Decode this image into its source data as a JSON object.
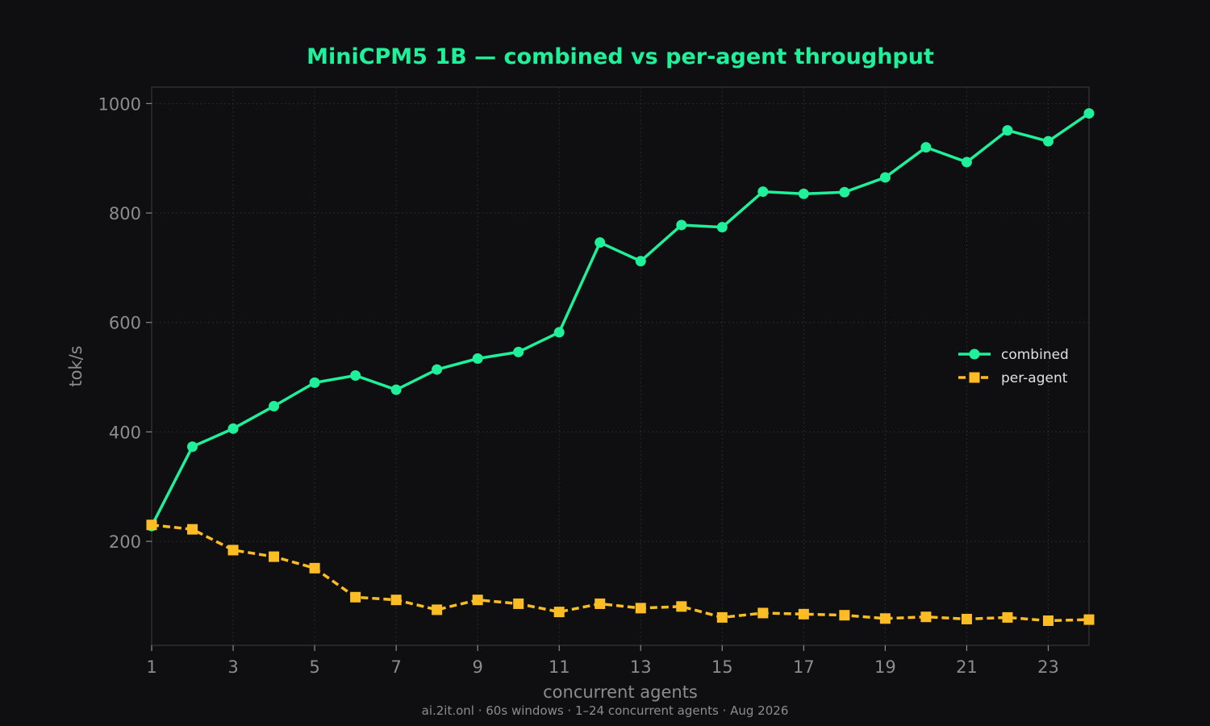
{
  "chart_data": {
    "type": "line",
    "title": "MiniCPM5 1B — combined vs per-agent throughput",
    "xlabel": "concurrent agents",
    "ylabel": "tok/s",
    "xlim": [
      1,
      24
    ],
    "ylim": [
      10,
      1030
    ],
    "xticks": [
      1,
      3,
      5,
      7,
      9,
      11,
      13,
      15,
      17,
      19,
      21,
      23
    ],
    "yticks": [
      200,
      400,
      600,
      800,
      1000
    ],
    "grid": true,
    "legend_position": "right",
    "x": [
      1,
      2,
      3,
      4,
      5,
      6,
      7,
      8,
      9,
      10,
      11,
      12,
      13,
      14,
      15,
      16,
      17,
      18,
      19,
      20,
      21,
      22,
      23,
      24
    ],
    "series": [
      {
        "name": "combined",
        "color": "#1ff09a",
        "marker": "circle",
        "line_style": "solid",
        "values": [
          228,
          373,
          406,
          447,
          490,
          503,
          477,
          514,
          534,
          546,
          582,
          746,
          712,
          778,
          774,
          839,
          835,
          838,
          865,
          920,
          893,
          951,
          931,
          982
        ]
      },
      {
        "name": "per-agent",
        "color": "#fbbd23",
        "marker": "square",
        "line_style": "dashed",
        "values": [
          230,
          222,
          184,
          172,
          151,
          98,
          93,
          75,
          93,
          86,
          71,
          86,
          78,
          81,
          61,
          69,
          67,
          65,
          59,
          62,
          58,
          61,
          55,
          57
        ]
      }
    ],
    "footer": "ai.2it.onl · 60s windows · 1–24 concurrent agents · Aug 2026",
    "colors": {
      "background": "#0f0f12",
      "title": "#1ff09a",
      "frame": "#2f2f33",
      "grid": "#2a2a2e",
      "tick_text": "#8c8c8c"
    }
  }
}
